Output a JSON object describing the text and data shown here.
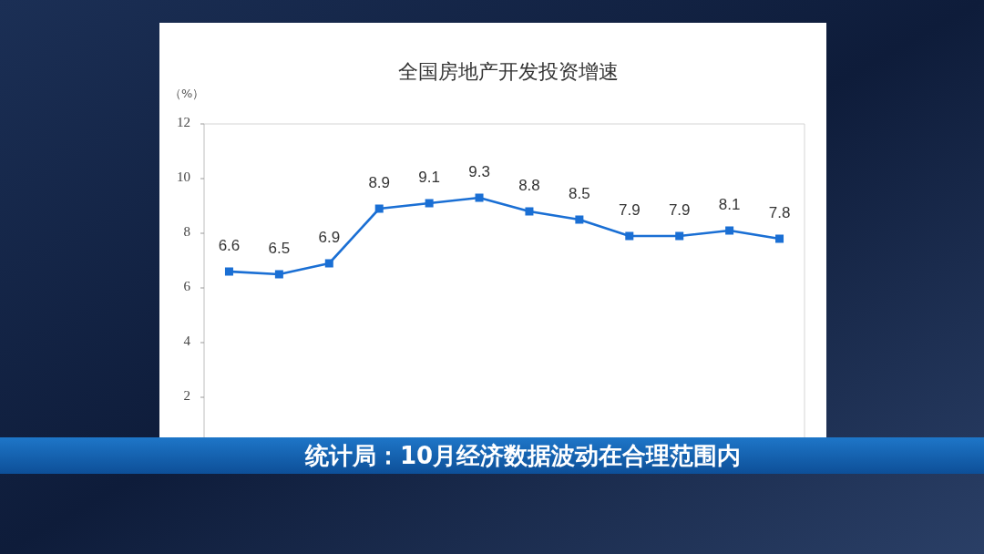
{
  "chart_data": {
    "type": "line",
    "title": "全国房地产开发投资增速",
    "ylabel": "（%）",
    "categories": [
      null,
      null,
      null,
      null,
      null,
      null,
      null,
      null,
      null,
      null,
      null,
      null
    ],
    "series": [
      {
        "color": "#1a6fd4",
        "values": [
          6.6,
          6.5,
          6.9,
          8.9,
          9.1,
          9.3,
          8.8,
          8.5,
          7.9,
          7.9,
          8.1,
          7.8
        ]
      }
    ],
    "ylim": [
      0.5,
      12
    ],
    "yticks": [
      2,
      4,
      6,
      8,
      10,
      12
    ],
    "tick_labels": "y",
    "marker": "square",
    "line_style": "solid",
    "data_labels": true,
    "annotations": [
      "统计局：10月经济数据波动在合理范围内"
    ]
  }
}
